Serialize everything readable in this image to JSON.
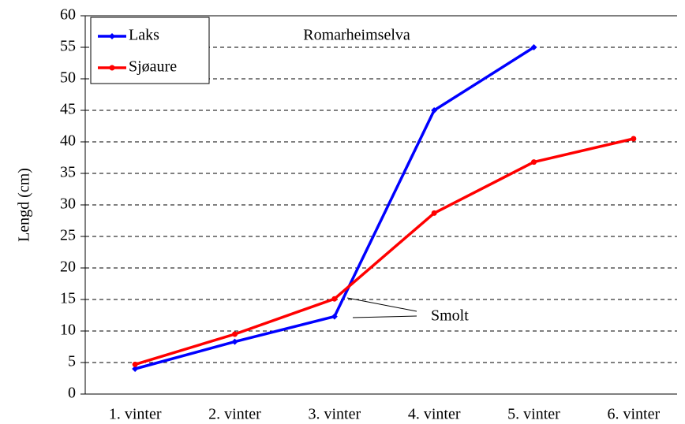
{
  "chart_data": {
    "type": "line",
    "title": "Romarheimselva",
    "y_label": "Lengd (cm)",
    "categories": [
      "1. vinter",
      "2. vinter",
      "3. vinter",
      "4. vinter",
      "5. vinter",
      "6. vinter"
    ],
    "series": [
      {
        "name": "Laks",
        "color": "#0000ff",
        "values": [
          4.0,
          8.3,
          12.3,
          45.0,
          55.0,
          null
        ]
      },
      {
        "name": "Sjøaure",
        "color": "#ff0000",
        "values": [
          4.7,
          9.5,
          15.1,
          28.7,
          36.8,
          40.5
        ]
      }
    ],
    "annotation": "Smolt",
    "ylim": [
      0,
      60
    ],
    "yticks": [
      0,
      5,
      10,
      15,
      20,
      25,
      30,
      35,
      40,
      45,
      50,
      55,
      60
    ],
    "grid": true,
    "legend": "upper left"
  }
}
